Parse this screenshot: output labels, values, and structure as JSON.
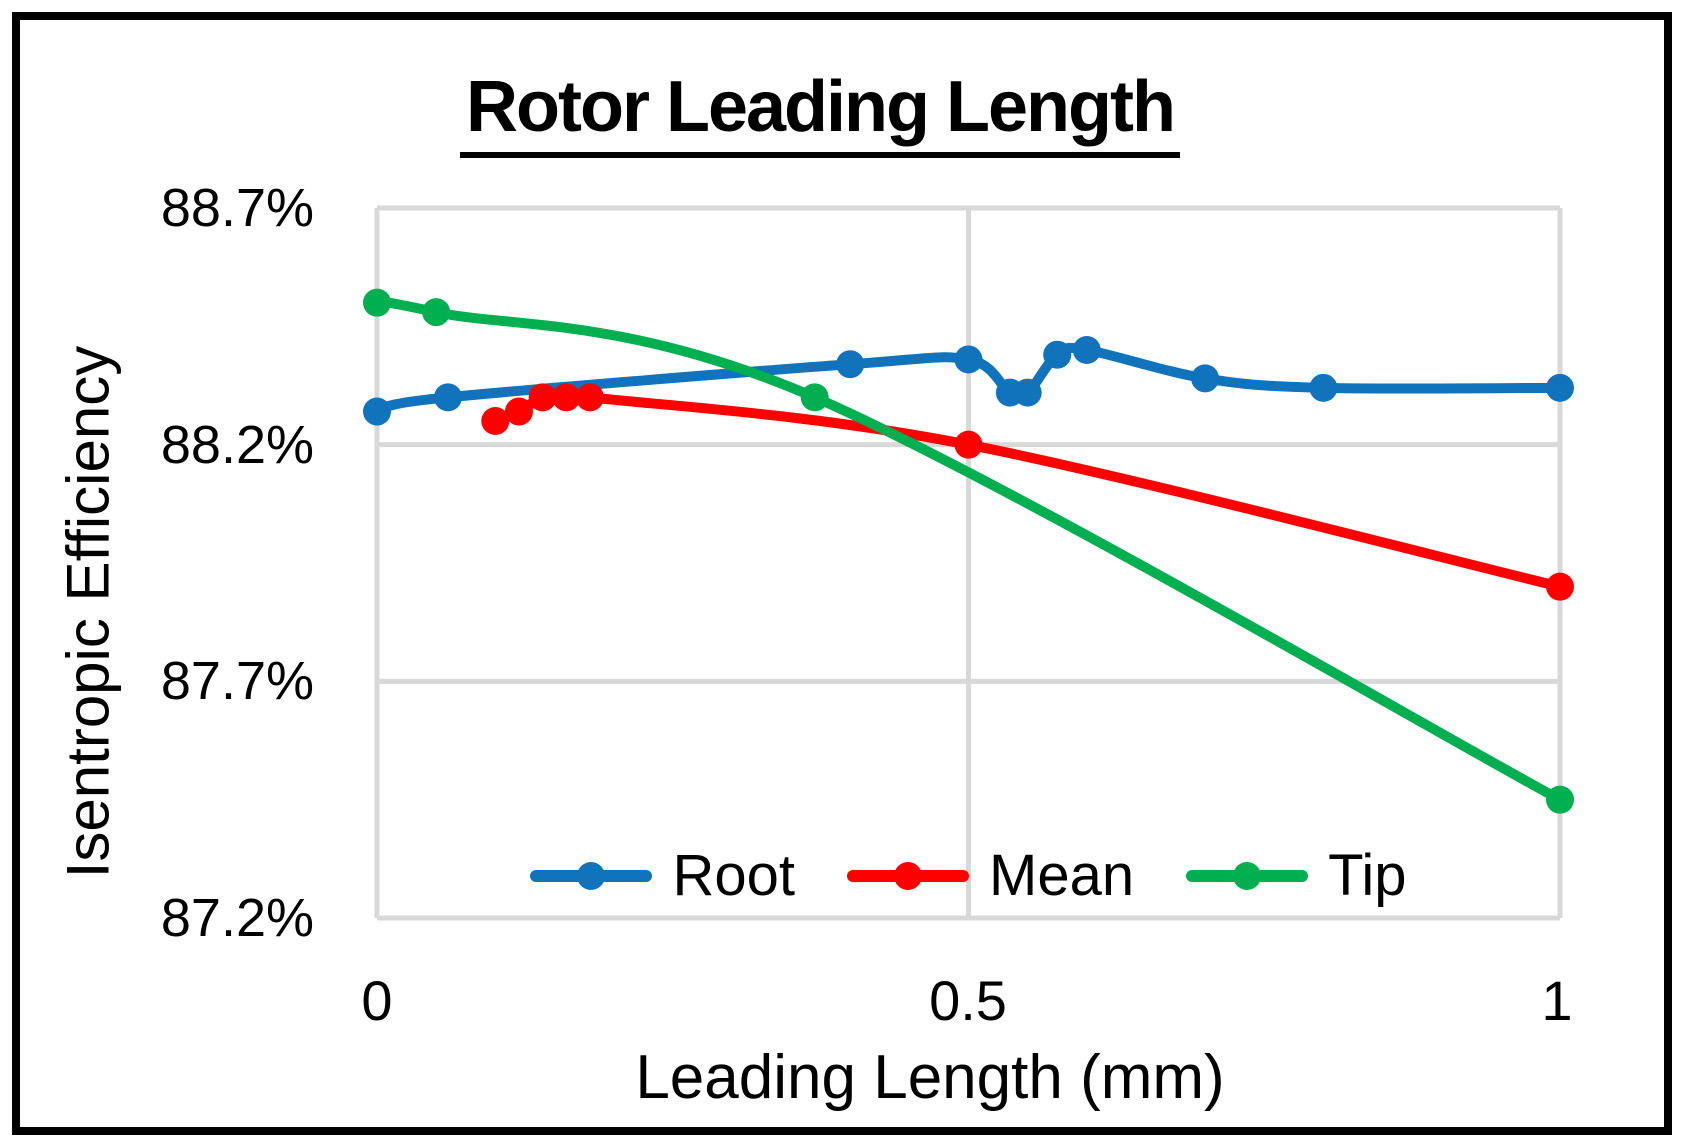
{
  "chart_data": {
    "type": "line",
    "title": "Rotor Leading Length",
    "xlabel": "Leading Length (mm)",
    "ylabel": "Isentropic Efficiency",
    "y_unit": "%",
    "xlim": [
      0,
      1
    ],
    "ylim": [
      87.2,
      88.7
    ],
    "grid": true,
    "gridline_color": "#D8D8D8",
    "legend_position": "bottom-inside",
    "xticks": [
      {
        "value": 0,
        "label": "0"
      },
      {
        "value": 0.5,
        "label": "0.5"
      },
      {
        "value": 1,
        "label": "1"
      }
    ],
    "yticks": [
      {
        "value": 88.7,
        "label": "88.7%"
      },
      {
        "value": 88.2,
        "label": "88.2%"
      },
      {
        "value": 87.7,
        "label": "87.7%"
      },
      {
        "value": 87.2,
        "label": "87.2%"
      }
    ],
    "series": [
      {
        "name": "Root",
        "color": "#1173BC",
        "smooth": true,
        "marker": "circle",
        "points": [
          [
            0.0,
            88.27
          ],
          [
            0.06,
            88.3
          ],
          [
            0.4,
            88.37
          ],
          [
            0.5,
            88.38
          ],
          [
            0.535,
            88.31
          ],
          [
            0.55,
            88.31
          ],
          [
            0.575,
            88.39
          ],
          [
            0.6,
            88.4
          ],
          [
            0.7,
            88.34
          ],
          [
            0.8,
            88.32
          ],
          [
            1.0,
            88.32
          ]
        ]
      },
      {
        "name": "Mean",
        "color": "#FF0000",
        "smooth": true,
        "marker": "circle",
        "points": [
          [
            0.1,
            88.25
          ],
          [
            0.12,
            88.27
          ],
          [
            0.14,
            88.3
          ],
          [
            0.16,
            88.3
          ],
          [
            0.18,
            88.3
          ],
          [
            0.5,
            88.2
          ],
          [
            1.0,
            87.9
          ]
        ]
      },
      {
        "name": "Tip",
        "color": "#00B050",
        "smooth": true,
        "marker": "circle",
        "points": [
          [
            0.0,
            88.5
          ],
          [
            0.05,
            88.48
          ],
          [
            0.37,
            88.3
          ],
          [
            1.0,
            87.45
          ]
        ]
      }
    ]
  }
}
